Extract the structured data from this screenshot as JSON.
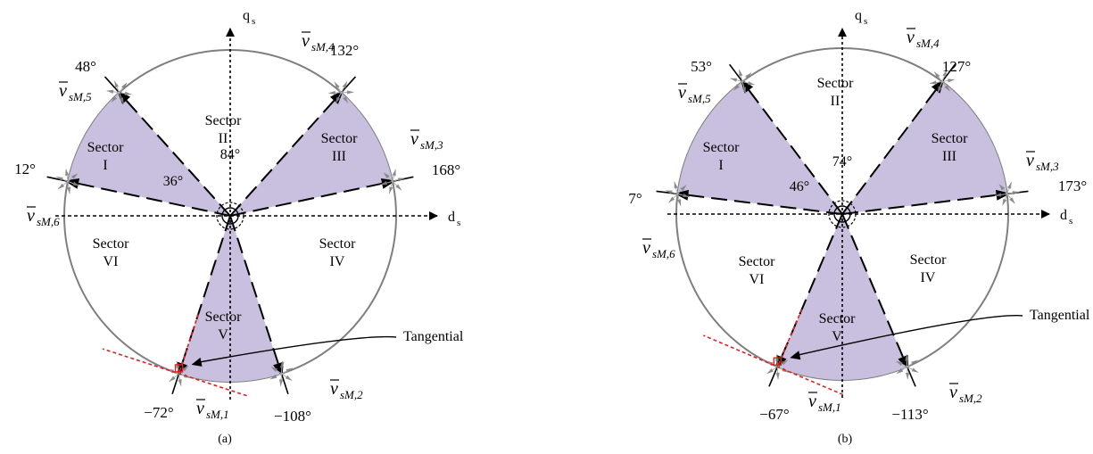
{
  "colors": {
    "sector_fill": "#c9bfdf",
    "circle_stroke": "#7f7f7f",
    "axis_stroke": "#000000",
    "tangent_red": "#e02020",
    "arrow_grey": "#808080"
  },
  "diagrams": [
    {
      "caption": "(a)",
      "axis_q": "q",
      "axis_q_sub": "s",
      "axis_d": "d",
      "axis_d_sub": "s",
      "center_angle_label": "84°",
      "sector_angle_label": "36°",
      "tangential_label": "Tangential",
      "angle_labels": [
        "48°",
        "132°",
        "12°",
        "168°",
        "−72°",
        "−108°"
      ],
      "vector_labels": [
        {
          "main": "v",
          "sub": "sM,5"
        },
        {
          "main": "v",
          "sub": "sM,4"
        },
        {
          "main": "v",
          "sub": "sM,3"
        },
        {
          "main": "v",
          "sub": "sM,6"
        },
        {
          "main": "v",
          "sub": "sM,1"
        },
        {
          "main": "v",
          "sub": "sM,2"
        }
      ],
      "sectors": [
        {
          "line1": "Sector",
          "line2": "II"
        },
        {
          "line1": "Sector",
          "line2": "I"
        },
        {
          "line1": "Sector",
          "line2": "III"
        },
        {
          "line1": "Sector",
          "line2": "VI"
        },
        {
          "line1": "Sector",
          "line2": "IV"
        },
        {
          "line1": "Sector",
          "line2": "V"
        }
      ]
    },
    {
      "caption": "(b)",
      "axis_q": "q",
      "axis_q_sub": "s",
      "axis_d": "d",
      "axis_d_sub": "s",
      "center_angle_label": "74°",
      "sector_angle_label": "46°",
      "tangential_label": "Tangential",
      "angle_labels": [
        "53°",
        "127°",
        "7°",
        "173°",
        "−67°",
        "−113°"
      ],
      "vector_labels": [
        {
          "main": "v",
          "sub": "sM,5"
        },
        {
          "main": "v",
          "sub": "sM,4"
        },
        {
          "main": "v",
          "sub": "sM,3"
        },
        {
          "main": "v",
          "sub": "sM,6"
        },
        {
          "main": "v",
          "sub": "sM,1"
        },
        {
          "main": "v",
          "sub": "sM,2"
        }
      ],
      "sectors": [
        {
          "line1": "Sector",
          "line2": "II"
        },
        {
          "line1": "Sector",
          "line2": "I"
        },
        {
          "line1": "Sector",
          "line2": "III"
        },
        {
          "line1": "Sector",
          "line2": "VI"
        },
        {
          "line1": "Sector",
          "line2": "IV"
        },
        {
          "line1": "Sector",
          "line2": "V"
        }
      ]
    }
  ]
}
